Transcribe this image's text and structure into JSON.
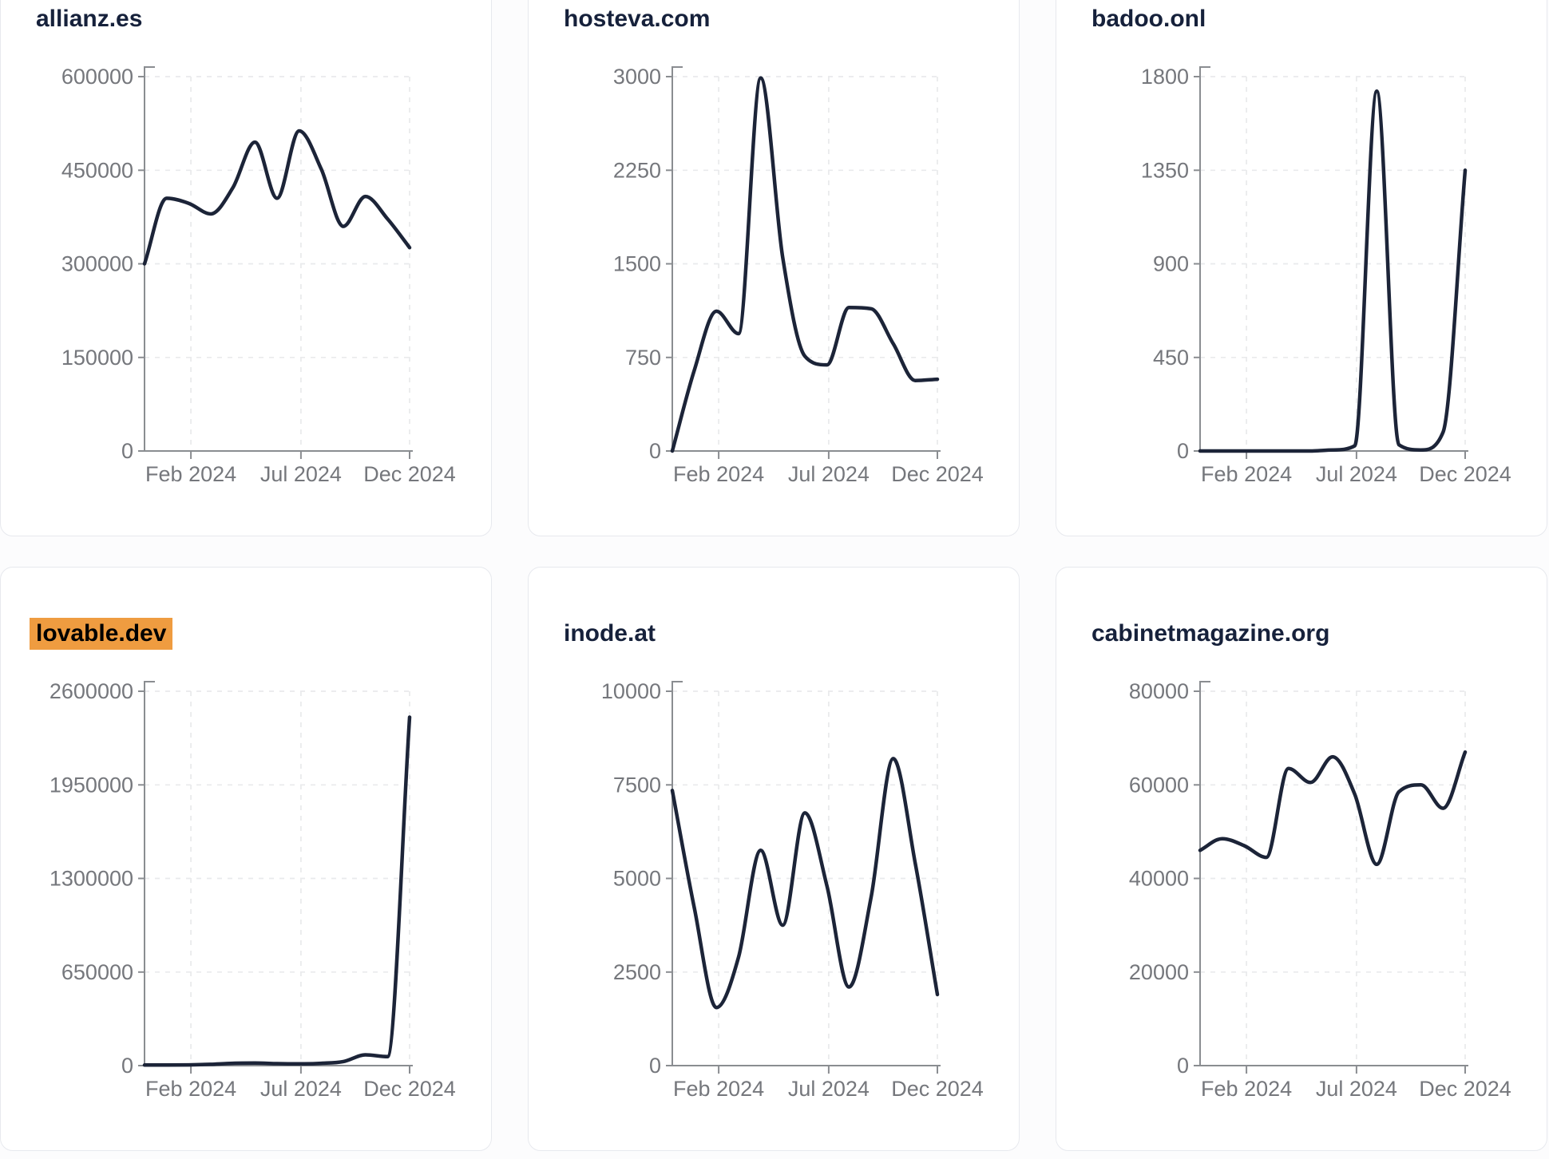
{
  "page": {
    "background": "#fcfcfd",
    "description": "Grid of six website-traffic line charts, Jan 2024 to Dec 2024"
  },
  "style": {
    "line": "#1c2438",
    "axis": "#8a8d91",
    "tick_label": "#75777c",
    "grid": "#e9eaec",
    "title": "#16213b",
    "highlight_bg": "#ef9c40",
    "highlight_text": "#000000",
    "card_bg": "#ffffff",
    "card_border": "#e7e9ee"
  },
  "chart_data": [
    {
      "type": "line",
      "title": "allianz.es",
      "highlighted": false,
      "x_ticks": [
        {
          "label": "Feb 2024",
          "f": 0.175
        },
        {
          "label": "Jul 2024",
          "f": 0.59
        },
        {
          "label": "Dec 2024",
          "f": 1.0
        }
      ],
      "y_ticks": [
        0,
        150000,
        300000,
        450000,
        600000
      ],
      "ylim": [
        0,
        600000
      ],
      "grid": true,
      "values": [
        300000,
        405000,
        397000,
        380000,
        422000,
        495000,
        405000,
        513000,
        452000,
        360000,
        408000,
        372000,
        326000
      ]
    },
    {
      "type": "line",
      "title": "hosteva.com",
      "highlighted": false,
      "x_ticks": [
        {
          "label": "Feb 2024",
          "f": 0.175
        },
        {
          "label": "Jul 2024",
          "f": 0.59
        },
        {
          "label": "Dec 2024",
          "f": 1.0
        }
      ],
      "y_ticks": [
        0,
        750,
        1500,
        2250,
        3000
      ],
      "ylim": [
        0,
        3000
      ],
      "grid": true,
      "values": [
        0,
        650,
        1120,
        940,
        2990,
        1550,
        760,
        690,
        1150,
        1140,
        860,
        565,
        575
      ]
    },
    {
      "type": "line",
      "title": "badoo.onl",
      "highlighted": false,
      "x_ticks": [
        {
          "label": "Feb 2024",
          "f": 0.175
        },
        {
          "label": "Jul 2024",
          "f": 0.59
        },
        {
          "label": "Dec 2024",
          "f": 1.0
        }
      ],
      "y_ticks": [
        0,
        450,
        900,
        1350,
        1800
      ],
      "ylim": [
        0,
        1800
      ],
      "grid": true,
      "values": [
        0,
        0,
        0,
        0,
        0,
        0,
        5,
        25,
        1730,
        30,
        5,
        90,
        1350
      ]
    },
    {
      "type": "line",
      "title": "lovable.dev",
      "highlighted": true,
      "x_ticks": [
        {
          "label": "Feb 2024",
          "f": 0.175
        },
        {
          "label": "Jul 2024",
          "f": 0.59
        },
        {
          "label": "Dec 2024",
          "f": 1.0
        }
      ],
      "y_ticks": [
        0,
        650000,
        1300000,
        1950000,
        2600000
      ],
      "ylim": [
        0,
        2600000
      ],
      "grid": true,
      "values": [
        4000,
        4000,
        5000,
        9000,
        16000,
        18000,
        14000,
        12000,
        16000,
        28000,
        75000,
        62000,
        2420000
      ]
    },
    {
      "type": "line",
      "title": "inode.at",
      "highlighted": false,
      "x_ticks": [
        {
          "label": "Feb 2024",
          "f": 0.175
        },
        {
          "label": "Jul 2024",
          "f": 0.59
        },
        {
          "label": "Dec 2024",
          "f": 1.0
        }
      ],
      "y_ticks": [
        0,
        2500,
        5000,
        7500,
        10000
      ],
      "ylim": [
        0,
        10000
      ],
      "grid": true,
      "values": [
        7350,
        4200,
        1550,
        2900,
        5750,
        3750,
        6750,
        4800,
        2100,
        4500,
        8200,
        5400,
        1900
      ]
    },
    {
      "type": "line",
      "title": "cabinetmagazine.org",
      "highlighted": false,
      "x_ticks": [
        {
          "label": "Feb 2024",
          "f": 0.175
        },
        {
          "label": "Jul 2024",
          "f": 0.59
        },
        {
          "label": "Dec 2024",
          "f": 1.0
        }
      ],
      "y_ticks": [
        0,
        20000,
        40000,
        60000,
        80000
      ],
      "ylim": [
        0,
        80000
      ],
      "grid": true,
      "values": [
        46000,
        48500,
        47000,
        44500,
        63500,
        60500,
        66000,
        58000,
        43000,
        58500,
        60000,
        55000,
        67000
      ]
    }
  ]
}
